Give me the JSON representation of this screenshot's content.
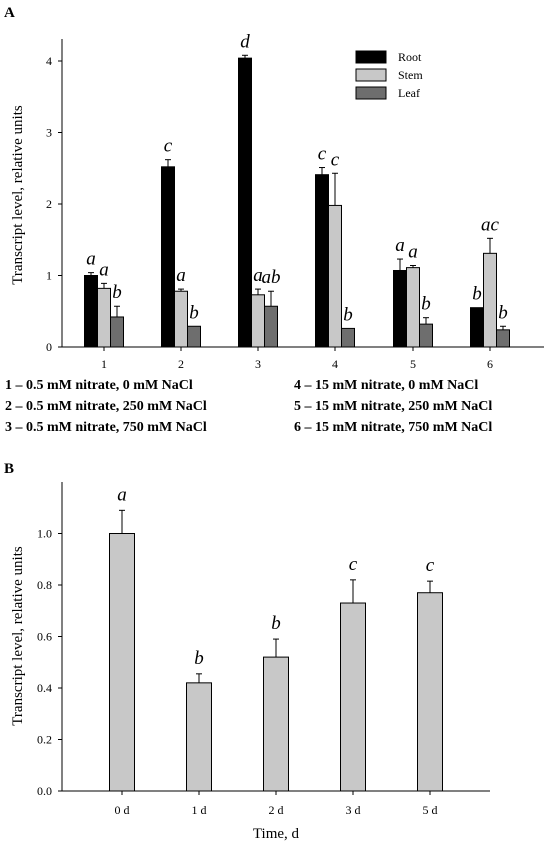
{
  "figure": {
    "panels": [
      {
        "id": "A",
        "label": "A"
      },
      {
        "id": "B",
        "label": "B"
      }
    ]
  },
  "chart_data": [
    {
      "panel": "A",
      "type": "bar",
      "ylabel": "Transcript level, relative units",
      "xlabel": "",
      "ylim": [
        0,
        4
      ],
      "yticks": [
        0,
        1,
        2,
        3,
        4
      ],
      "grid": false,
      "legend_position": "top-right",
      "categories": [
        "1",
        "2",
        "3",
        "4",
        "5",
        "6"
      ],
      "series": [
        {
          "name": "Root",
          "color": "#000000",
          "values": [
            1.0,
            2.52,
            4.04,
            2.41,
            1.07,
            0.55
          ],
          "errors": [
            0.04,
            0.1,
            0.04,
            0.1,
            0.16,
            0.0
          ],
          "letters": [
            "a",
            "c",
            "d",
            "c",
            "a",
            "b"
          ]
        },
        {
          "name": "Stem",
          "color": "#c8c8c8",
          "values": [
            0.82,
            0.78,
            0.73,
            1.98,
            1.11,
            1.31
          ],
          "errors": [
            0.07,
            0.03,
            0.08,
            0.45,
            0.03,
            0.21
          ],
          "letters": [
            "a",
            "a",
            "a",
            "c",
            "a",
            "ac"
          ]
        },
        {
          "name": "Leaf",
          "color": "#6e6e6e",
          "values": [
            0.42,
            0.29,
            0.57,
            0.26,
            0.32,
            0.24
          ],
          "errors": [
            0.15,
            0.0,
            0.21,
            0.0,
            0.09,
            0.05
          ],
          "letters": [
            "b",
            "b",
            "ab",
            "b",
            "b",
            "b"
          ]
        }
      ],
      "footnotes": [
        "1 – 0.5 mM nitrate, 0 mM NaCl",
        "4 – 15 mM nitrate, 0 mM NaCl",
        "2 – 0.5 mM nitrate, 250 mM NaCl",
        "5 – 15 mM nitrate, 250 mM NaCl",
        "3 – 0.5 mM nitrate, 750 mM NaCl",
        "6 – 15 mM nitrate, 750 mM NaCl"
      ]
    },
    {
      "panel": "B",
      "type": "bar",
      "ylabel": "Transcript level, relative units",
      "xlabel": "Time, d",
      "ylim": [
        0,
        1.2
      ],
      "yticks": [
        "0.0",
        "0.2",
        "0.4",
        "0.6",
        "0.8",
        "1.0"
      ],
      "grid": false,
      "categories": [
        "0 d",
        "1 d",
        "2 d",
        "3 d",
        "5 d"
      ],
      "series": [
        {
          "color": "#c8c8c8",
          "values": [
            1.0,
            0.42,
            0.52,
            0.73,
            0.77
          ],
          "errors": [
            0.09,
            0.035,
            0.07,
            0.09,
            0.045
          ],
          "letters": [
            "a",
            "b",
            "b",
            "c",
            "c"
          ]
        }
      ]
    }
  ]
}
